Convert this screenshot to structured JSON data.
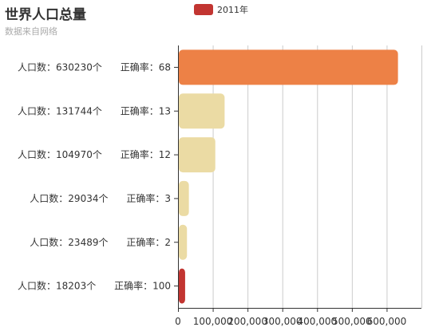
{
  "header": {
    "title": "世界人口总量",
    "subtitle": "数据来自网络"
  },
  "legend": {
    "label": "2011年",
    "color": "#c23531"
  },
  "chart_data": {
    "type": "bar",
    "orientation": "horizontal",
    "title": "世界人口总量",
    "subtitle": "数据来自网络",
    "legend": [
      "2011年"
    ],
    "legend_position": "top-center",
    "categories": [
      "人口数：630230个      正确率：68",
      "人口数：131744个      正确率：13",
      "人口数：104970个      正确率：12",
      "人口数：29034个      正确率：3",
      "人口数：23489个      正确率：2",
      "人口数：18203个      正确率：100"
    ],
    "series": [
      {
        "name": "2011年",
        "values": [
          630230,
          131744,
          104970,
          29034,
          23489,
          18203
        ],
        "colors": [
          "#ed8146",
          "#ebdba4",
          "#ebdba4",
          "#ebdba4",
          "#ebdba4",
          "#c23531"
        ]
      }
    ],
    "xlim": [
      0,
      700000
    ],
    "xticks": [
      0,
      100000,
      200000,
      300000,
      400000,
      500000,
      600000
    ],
    "xtick_labels": [
      "0",
      "100,000",
      "200,000",
      "300,000",
      "400,000",
      "500,000",
      "600,000"
    ],
    "grid": true
  }
}
